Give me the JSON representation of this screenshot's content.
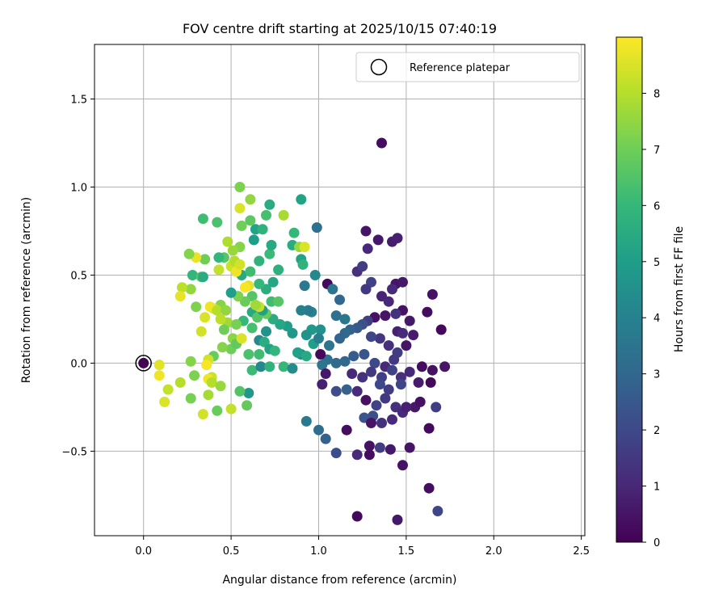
{
  "chart_data": {
    "type": "scatter",
    "title": "FOV centre drift starting at 2025/10/15 07:40:19",
    "xlabel": "Angular distance from reference (arcmin)",
    "ylabel": "Rotation from reference (arcmin)",
    "xlim": [
      -0.28,
      2.52
    ],
    "ylim": [
      -0.98,
      1.81
    ],
    "xticks": [
      0.0,
      0.5,
      1.0,
      1.5,
      2.0,
      2.5
    ],
    "xtick_labels": [
      "0.0",
      "0.5",
      "1.0",
      "1.5",
      "2.0",
      "2.5"
    ],
    "yticks": [
      -0.5,
      0.0,
      0.5,
      1.0,
      1.5
    ],
    "ytick_labels": [
      "−0.5",
      "0.0",
      "0.5",
      "1.0",
      "1.5"
    ],
    "grid": true,
    "legend": {
      "position": "top-right",
      "label": "Reference platepar",
      "marker": "open-circle"
    },
    "reference_point": {
      "x": 0.0,
      "y": 0.0
    },
    "colorbar": {
      "label": "Hours from first FF file",
      "colormap": "viridis",
      "range": [
        0,
        9
      ],
      "ticks": [
        0,
        1,
        2,
        3,
        4,
        5,
        6,
        7,
        8
      ],
      "tick_labels": [
        "0",
        "1",
        "2",
        "3",
        "4",
        "5",
        "6",
        "7",
        "8"
      ],
      "stops": [
        "#440154",
        "#482878",
        "#3e4989",
        "#31688e",
        "#26828e",
        "#1f9e89",
        "#35b779",
        "#6ece58",
        "#b5de2b",
        "#fde725"
      ]
    },
    "points": [
      [
        1.36,
        1.25,
        0.3
      ],
      [
        1.27,
        0.75,
        0.5
      ],
      [
        1.34,
        0.7,
        0.6
      ],
      [
        1.42,
        0.69,
        0.7
      ],
      [
        1.45,
        0.71,
        0.8
      ],
      [
        1.28,
        0.65,
        1.0
      ],
      [
        1.22,
        0.52,
        1.2
      ],
      [
        1.25,
        0.55,
        1.6
      ],
      [
        1.3,
        0.46,
        1.8
      ],
      [
        1.44,
        0.45,
        0.5
      ],
      [
        1.48,
        0.46,
        0.6
      ],
      [
        1.42,
        0.42,
        1.1
      ],
      [
        1.27,
        0.42,
        1.5
      ],
      [
        1.65,
        0.39,
        0.4
      ],
      [
        1.62,
        0.29,
        0.3
      ],
      [
        1.36,
        0.38,
        0.9
      ],
      [
        1.4,
        0.35,
        1.0
      ],
      [
        1.48,
        0.3,
        0.4
      ],
      [
        1.52,
        0.24,
        0.6
      ],
      [
        1.7,
        0.19,
        0.2
      ],
      [
        1.44,
        0.28,
        1.3
      ],
      [
        1.38,
        0.27,
        0.5
      ],
      [
        1.32,
        0.26,
        0.4
      ],
      [
        1.28,
        0.24,
        1.7
      ],
      [
        1.25,
        0.22,
        2.2
      ],
      [
        1.22,
        0.2,
        2.5
      ],
      [
        1.18,
        0.19,
        2.8
      ],
      [
        1.15,
        0.17,
        3.0
      ],
      [
        1.12,
        0.14,
        2.9
      ],
      [
        1.45,
        0.18,
        0.8
      ],
      [
        1.48,
        0.17,
        1.1
      ],
      [
        1.54,
        0.16,
        0.7
      ],
      [
        1.35,
        0.14,
        1.4
      ],
      [
        1.3,
        0.15,
        1.9
      ],
      [
        1.4,
        0.1,
        1.2
      ],
      [
        1.5,
        0.1,
        0.5
      ],
      [
        1.45,
        0.06,
        1.6
      ],
      [
        1.43,
        0.02,
        1.5
      ],
      [
        1.38,
        -0.02,
        1.0
      ],
      [
        1.32,
        0.0,
        2.0
      ],
      [
        1.26,
        0.05,
        2.4
      ],
      [
        1.2,
        0.04,
        2.6
      ],
      [
        1.15,
        0.01,
        3.0
      ],
      [
        1.1,
        0.0,
        3.1
      ],
      [
        1.05,
        0.02,
        3.3
      ],
      [
        1.02,
        -0.01,
        3.5
      ],
      [
        1.01,
        0.05,
        0.2
      ],
      [
        1.04,
        -0.06,
        0.6
      ],
      [
        1.19,
        -0.06,
        1.0
      ],
      [
        1.25,
        -0.08,
        1.3
      ],
      [
        1.3,
        -0.05,
        1.5
      ],
      [
        1.36,
        -0.08,
        1.7
      ],
      [
        1.42,
        -0.04,
        1.8
      ],
      [
        1.47,
        -0.08,
        1.2
      ],
      [
        1.52,
        -0.05,
        1.0
      ],
      [
        1.57,
        -0.11,
        0.7
      ],
      [
        1.64,
        -0.11,
        0.2
      ],
      [
        1.65,
        -0.04,
        0.4
      ],
      [
        1.72,
        -0.02,
        0.5
      ],
      [
        1.59,
        -0.02,
        0.3
      ],
      [
        1.02,
        -0.12,
        0.8
      ],
      [
        1.1,
        -0.16,
        2.1
      ],
      [
        1.16,
        -0.15,
        2.8
      ],
      [
        1.22,
        -0.16,
        1.1
      ],
      [
        1.27,
        -0.21,
        0.4
      ],
      [
        1.33,
        -0.24,
        1.8
      ],
      [
        1.38,
        -0.2,
        1.5
      ],
      [
        1.44,
        -0.25,
        1.2
      ],
      [
        1.48,
        -0.28,
        1.0
      ],
      [
        1.55,
        -0.25,
        0.6
      ],
      [
        1.47,
        -0.12,
        1.9
      ],
      [
        1.4,
        -0.15,
        1.6
      ],
      [
        1.35,
        -0.12,
        2.0
      ],
      [
        1.31,
        -0.3,
        2.2
      ],
      [
        1.26,
        -0.31,
        2.4
      ],
      [
        1.3,
        -0.34,
        0.5
      ],
      [
        1.36,
        -0.34,
        1.3
      ],
      [
        1.42,
        -0.32,
        1.1
      ],
      [
        1.5,
        -0.25,
        0.8
      ],
      [
        1.58,
        -0.22,
        0.4
      ],
      [
        1.67,
        -0.25,
        1.7
      ],
      [
        0.93,
        -0.33,
        3.7
      ],
      [
        1.0,
        -0.38,
        3.2
      ],
      [
        1.04,
        -0.43,
        2.8
      ],
      [
        1.1,
        -0.51,
        2.1
      ],
      [
        1.16,
        -0.38,
        0.3
      ],
      [
        1.22,
        -0.52,
        1.0
      ],
      [
        1.29,
        -0.47,
        0.4
      ],
      [
        1.35,
        -0.48,
        1.6
      ],
      [
        1.41,
        -0.49,
        0.6
      ],
      [
        1.29,
        -0.52,
        0.3
      ],
      [
        1.52,
        -0.48,
        0.5
      ],
      [
        1.63,
        -0.37,
        0.2
      ],
      [
        1.48,
        -0.58,
        0.4
      ],
      [
        1.63,
        -0.71,
        0.3
      ],
      [
        1.68,
        -0.84,
        1.9
      ],
      [
        1.45,
        -0.89,
        0.6
      ],
      [
        1.22,
        -0.87,
        0.2
      ],
      [
        0.99,
        0.77,
        3.3
      ],
      [
        1.05,
        0.45,
        0.2
      ],
      [
        1.08,
        0.42,
        3.5
      ],
      [
        1.12,
        0.36,
        3.0
      ],
      [
        1.1,
        0.27,
        3.3
      ],
      [
        1.15,
        0.25,
        3.6
      ],
      [
        0.96,
        0.29,
        4.0
      ],
      [
        0.94,
        0.3,
        3.7
      ],
      [
        0.92,
        0.44,
        3.7
      ],
      [
        0.98,
        0.5,
        4.2
      ],
      [
        1.01,
        0.19,
        4.5
      ],
      [
        0.96,
        0.19,
        4.8
      ],
      [
        0.9,
        0.3,
        3.9
      ],
      [
        0.93,
        0.16,
        4.6
      ],
      [
        0.97,
        0.11,
        5.0
      ],
      [
        1.0,
        0.14,
        3.9
      ],
      [
        1.06,
        0.1,
        3.5
      ],
      [
        0.9,
        0.05,
        4.2
      ],
      [
        0.88,
        0.06,
        5.1
      ],
      [
        0.93,
        0.04,
        5.4
      ],
      [
        0.85,
        0.17,
        4.7
      ],
      [
        0.82,
        0.21,
        5.0
      ],
      [
        0.78,
        0.22,
        5.3
      ],
      [
        0.74,
        0.25,
        5.5
      ],
      [
        0.7,
        0.18,
        4.6
      ],
      [
        0.66,
        0.13,
        4.3
      ],
      [
        0.69,
        0.12,
        5.6
      ],
      [
        0.72,
        0.08,
        5.2
      ],
      [
        0.75,
        0.07,
        5.9
      ],
      [
        0.66,
        0.05,
        6.2
      ],
      [
        0.6,
        0.05,
        6.4
      ],
      [
        0.62,
        -0.04,
        6.1
      ],
      [
        0.67,
        -0.02,
        4.2
      ],
      [
        0.72,
        -0.02,
        5.8
      ],
      [
        0.8,
        -0.02,
        6.0
      ],
      [
        0.85,
        -0.03,
        4.4
      ],
      [
        0.6,
        -0.17,
        4.8
      ],
      [
        0.55,
        -0.16,
        6.5
      ],
      [
        0.59,
        -0.24,
        6.8
      ],
      [
        0.62,
        0.29,
        5.4
      ],
      [
        0.57,
        0.24,
        6.0
      ],
      [
        0.62,
        0.2,
        6.3
      ],
      [
        0.65,
        0.26,
        6.6
      ],
      [
        0.7,
        0.28,
        6.9
      ],
      [
        0.68,
        0.3,
        5.1
      ],
      [
        0.73,
        0.35,
        6.2
      ],
      [
        0.77,
        0.35,
        6.6
      ],
      [
        0.7,
        0.42,
        5.6
      ],
      [
        0.74,
        0.46,
        5.3
      ],
      [
        0.66,
        0.45,
        6.0
      ],
      [
        0.62,
        0.38,
        6.6
      ],
      [
        0.58,
        0.35,
        6.9
      ],
      [
        0.54,
        0.38,
        7.2
      ],
      [
        0.5,
        0.4,
        5.0
      ],
      [
        0.56,
        0.5,
        5.4
      ],
      [
        0.61,
        0.52,
        6.2
      ],
      [
        0.66,
        0.58,
        5.8
      ],
      [
        0.72,
        0.62,
        6.1
      ],
      [
        0.77,
        0.53,
        5.7
      ],
      [
        0.73,
        0.67,
        5.4
      ],
      [
        0.7,
        0.84,
        6.3
      ],
      [
        0.72,
        0.9,
        5.5
      ],
      [
        0.8,
        0.84,
        7.8
      ],
      [
        0.85,
        0.67,
        5.5
      ],
      [
        0.9,
        0.59,
        5.2
      ],
      [
        0.86,
        0.74,
        6.0
      ],
      [
        0.9,
        0.93,
        5.2
      ],
      [
        0.89,
        0.66,
        7.6
      ],
      [
        0.92,
        0.66,
        8.5
      ],
      [
        0.91,
        0.56,
        5.8
      ],
      [
        0.64,
        0.76,
        5.2
      ],
      [
        0.68,
        0.76,
        5.8
      ],
      [
        0.63,
        0.7,
        5.0
      ],
      [
        0.61,
        0.81,
        6.7
      ],
      [
        0.56,
        0.78,
        7.0
      ],
      [
        0.55,
        0.66,
        7.3
      ],
      [
        0.51,
        0.64,
        7.6
      ],
      [
        0.48,
        0.69,
        7.9
      ],
      [
        0.46,
        0.6,
        6.6
      ],
      [
        0.43,
        0.6,
        5.9
      ],
      [
        0.42,
        0.8,
        6.4
      ],
      [
        0.34,
        0.82,
        6.2
      ],
      [
        0.55,
        1.0,
        7.2
      ],
      [
        0.61,
        0.93,
        7.5
      ],
      [
        0.55,
        0.88,
        8.5
      ],
      [
        0.35,
        0.59,
        7.0
      ],
      [
        0.3,
        0.6,
        8.7
      ],
      [
        0.26,
        0.62,
        7.3
      ],
      [
        0.28,
        0.5,
        5.9
      ],
      [
        0.33,
        0.49,
        6.6
      ],
      [
        0.34,
        0.49,
        5.5
      ],
      [
        0.43,
        0.53,
        8.2
      ],
      [
        0.5,
        0.55,
        8.3
      ],
      [
        0.52,
        0.58,
        8.0
      ],
      [
        0.53,
        0.52,
        8.8
      ],
      [
        0.55,
        0.56,
        8.4
      ],
      [
        0.6,
        0.44,
        8.6
      ],
      [
        0.58,
        0.43,
        8.9
      ],
      [
        0.66,
        0.32,
        8.2
      ],
      [
        0.64,
        0.33,
        7.7
      ],
      [
        0.44,
        0.33,
        7.3
      ],
      [
        0.4,
        0.31,
        8.6
      ],
      [
        0.38,
        0.32,
        8.8
      ],
      [
        0.42,
        0.3,
        8.0
      ],
      [
        0.47,
        0.3,
        7.5
      ],
      [
        0.48,
        0.23,
        7.7
      ],
      [
        0.46,
        0.19,
        7.0
      ],
      [
        0.44,
        0.25,
        8.1
      ],
      [
        0.35,
        0.26,
        8.5
      ],
      [
        0.3,
        0.32,
        7.2
      ],
      [
        0.27,
        0.42,
        7.5
      ],
      [
        0.22,
        0.43,
        8.1
      ],
      [
        0.21,
        0.38,
        8.7
      ],
      [
        0.33,
        0.18,
        8.4
      ],
      [
        0.5,
        0.08,
        7.0
      ],
      [
        0.51,
        0.14,
        7.4
      ],
      [
        0.53,
        0.11,
        6.8
      ],
      [
        0.53,
        0.22,
        7.1
      ],
      [
        0.56,
        0.14,
        8.5
      ],
      [
        0.45,
        0.09,
        7.3
      ],
      [
        0.4,
        0.04,
        6.9
      ],
      [
        0.37,
        0.02,
        8.4
      ],
      [
        0.36,
        -0.01,
        8.9
      ],
      [
        0.27,
        0.01,
        7.3
      ],
      [
        0.29,
        -0.07,
        7.2
      ],
      [
        0.39,
        -0.08,
        8.3
      ],
      [
        0.37,
        -0.09,
        8.8
      ],
      [
        0.39,
        -0.11,
        8.0
      ],
      [
        0.44,
        -0.13,
        7.6
      ],
      [
        0.37,
        -0.18,
        7.8
      ],
      [
        0.27,
        -0.2,
        7.1
      ],
      [
        0.42,
        -0.27,
        6.9
      ],
      [
        0.34,
        -0.29,
        8.4
      ],
      [
        0.5,
        -0.26,
        8.2
      ],
      [
        0.21,
        -0.11,
        8.0
      ],
      [
        0.14,
        -0.15,
        8.2
      ],
      [
        0.12,
        -0.22,
        8.5
      ],
      [
        0.09,
        -0.07,
        8.8
      ],
      [
        0.09,
        -0.01,
        8.6
      ]
    ]
  }
}
